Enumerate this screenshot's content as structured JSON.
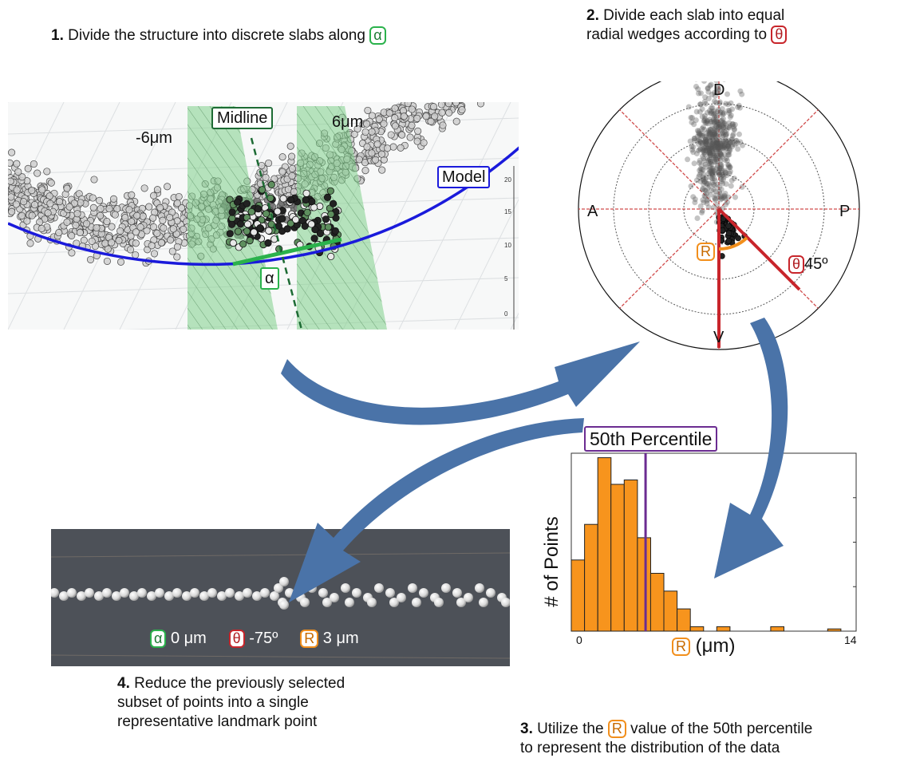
{
  "step1": {
    "num": "1.",
    "text": "Divide the structure into discrete slabs along",
    "symbol": "α"
  },
  "step2": {
    "num": "2.",
    "line1": "Divide each slab into equal",
    "line2": "radial wedges according to",
    "symbol": "θ"
  },
  "step3": {
    "num": "3.",
    "pre": "Utilize the",
    "symbol": "R",
    "post": "value of the 50th percentile",
    "line2": "to represent the distribution of the data"
  },
  "step4": {
    "num": "4.",
    "line1": "Reduce the previously selected",
    "line2": "subset of points into a single",
    "line3": "representative landmark point"
  },
  "slab_panel": {
    "midline_label": "Midline",
    "left_offset": "-6μm",
    "right_offset": "6μm",
    "model_label": "Model",
    "alpha_label": "α",
    "axis_ticks": [
      "20",
      "15",
      "10",
      "5",
      "0"
    ]
  },
  "polar_panel": {
    "top": "D",
    "bottom": "V",
    "left": "A",
    "right": "P",
    "r_label": "R",
    "theta_label": "θ",
    "theta_value": "45º"
  },
  "histogram": {
    "percentile_label": "50th Percentile",
    "ylabel": "# of Points",
    "xlabel_symbol": "R",
    "xlabel_unit": "(μm)",
    "x_ticks": [
      "0",
      "14"
    ]
  },
  "chart_data": {
    "type": "bar",
    "title": "",
    "xlabel": "R (μm)",
    "ylabel": "# of Points",
    "xlim": [
      0,
      14
    ],
    "bin_width": 0.65,
    "bin_starts": [
      0,
      0.65,
      1.3,
      1.95,
      2.6,
      3.25,
      3.9,
      4.55,
      5.2,
      5.85,
      6.5,
      7.15,
      7.8,
      8.45,
      9.1,
      9.75,
      10.4,
      11.05,
      11.7
    ],
    "values": [
      16,
      24,
      39,
      33,
      34,
      21,
      13,
      9,
      5,
      1,
      0,
      1,
      0,
      0,
      0,
      0,
      0,
      0,
      0
    ],
    "extra_bars": [
      {
        "x": 9.8,
        "value": 1
      },
      {
        "x": 12.6,
        "value": 0.5
      }
    ],
    "median_line_x": 3.65,
    "series_color": "#f7941d",
    "median_color": "#6b2c91"
  },
  "landmark_panel": {
    "alpha_symbol": "α",
    "alpha_value": "0 μm",
    "theta_symbol": "θ",
    "theta_value": "-75º",
    "r_symbol": "R",
    "r_value": "3 μm"
  },
  "colors": {
    "arrow": "#4a73a8",
    "green": "#2bb24c",
    "red": "#c8252b",
    "orange": "#f28f1c",
    "purple": "#6b2c91",
    "model_blue": "#1a1adb"
  }
}
